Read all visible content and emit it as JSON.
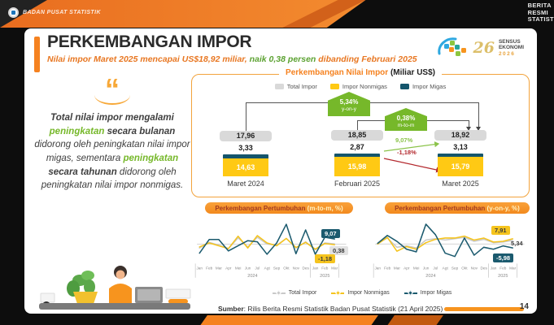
{
  "brand": {
    "org_name": "BADAN PUSAT STATISTIK",
    "corner_lines": [
      "BERITA",
      "RESMI",
      "STATISTIK"
    ],
    "sensus": {
      "word1": "SENSUS",
      "word2": "EKONOMI",
      "year": "2026",
      "numeral": "26"
    }
  },
  "header": {
    "title": "PERKEMBANGAN IMPOR",
    "subtitle_pre": "Nilai impor Maret 2025 mencapai US$18,92 miliar, ",
    "subtitle_highlight": "naik 0,38 persen",
    "subtitle_post": " dibanding Februari 2025"
  },
  "quote": {
    "mark": "“",
    "seg1": "Total nilai impor mengalami ",
    "seg2": "peningkatan",
    "seg3": " secara bulanan",
    "seg4": " didorong oleh peningkatan nilai impor migas, sementara ",
    "seg5": "peningkatan",
    "seg6": " secara tahunan",
    "seg7": " didorong oleh peningkatan nilai impor nonmigas."
  },
  "main_panel": {
    "title_main": "Perkembangan Nilai Impor ",
    "title_unit": "(Miliar US$)",
    "legend": [
      {
        "label": "Total Impor"
      },
      {
        "label": "Impor Nonmigas"
      },
      {
        "label": "Impor Migas"
      }
    ],
    "badge_yoy": {
      "pct": "5,34%",
      "sub": "y-on-y"
    },
    "badge_mtm": {
      "pct": "0,38%",
      "sub": "m-to-m"
    },
    "arrow_migas": "9,07%",
    "arrow_nonmigas": "-1,18%",
    "columns": [
      {
        "label": "Maret 2024",
        "total": "17,96",
        "migas": "3,33",
        "nonmigas": "14,63"
      },
      {
        "label": "Februari 2025",
        "total": "18,85",
        "migas": "2,87",
        "nonmigas": "15,98"
      },
      {
        "label": "Maret 2025",
        "total": "18,92",
        "migas": "3,13",
        "nonmigas": "15,79"
      }
    ]
  },
  "mini_charts": [
    {
      "title_main": "Perkembangan Pertumbuhan ",
      "title_unit": "(m-to-m, %)",
      "badges": [
        {
          "text": "9,07"
        },
        {
          "text": "0,38"
        },
        {
          "text": "-1,18"
        }
      ]
    },
    {
      "title_main": "Perkembangan Pertumbuhan ",
      "title_unit": "(y-on-y, %)",
      "badges": [
        {
          "text": "7,91"
        },
        {
          "text": "5,34"
        },
        {
          "text": "-5,98"
        }
      ]
    }
  ],
  "bottom_legend": [
    {
      "label": "Total Impor"
    },
    {
      "label": "Impor Nonmigas"
    },
    {
      "label": "Impor Migas"
    }
  ],
  "footer": {
    "source_bold": "Sumber",
    "source_rest": ": Rilis Berita Resmi Statistik Badan Pusat Statistik (21 April 2025)",
    "page": "14"
  },
  "colors": {
    "orange": "#F58220",
    "yellow": "#FFC914",
    "navy": "#14556C",
    "green": "#76B82A",
    "red": "#B3282D",
    "gray_pill": "#D9D9D9"
  },
  "chart_data": [
    {
      "type": "bar",
      "title": "Perkembangan Nilai Impor (Miliar US$)",
      "categories": [
        "Maret 2024",
        "Februari 2025",
        "Maret 2025"
      ],
      "series": [
        {
          "name": "Total Impor",
          "values": [
            17.96,
            18.85,
            18.92
          ]
        },
        {
          "name": "Impor Nonmigas",
          "values": [
            14.63,
            15.98,
            15.79
          ]
        },
        {
          "name": "Impor Migas",
          "values": [
            3.33,
            2.87,
            3.13
          ]
        }
      ],
      "annotations": {
        "yoy_growth_pct": 5.34,
        "mtm_growth_pct": 0.38,
        "migas_mtm_pct": 9.07,
        "nonmigas_mtm_pct": -1.18
      },
      "legend_position": "top",
      "grid": false
    },
    {
      "type": "line",
      "title": "Perkembangan Pertumbuhan (m-to-m, %)",
      "x": [
        "Jan",
        "Feb",
        "Mar",
        "Apr",
        "Mei",
        "Jun",
        "Jul",
        "Agt",
        "Sep",
        "Okt",
        "Nov",
        "Des",
        "Jan",
        "Feb",
        "Mar"
      ],
      "year_groups": [
        {
          "label": "2024",
          "from": 0,
          "to": 11
        },
        {
          "label": "2025",
          "from": 12,
          "to": 14
        }
      ],
      "ylim": [
        -30,
        42
      ],
      "grid": false,
      "series": [
        {
          "name": "Total Impor",
          "color": "#C9C9C9",
          "values": [
            -7,
            3,
            -2,
            -8,
            11,
            -5,
            12,
            0,
            -2,
            10,
            -7,
            4,
            -10,
            2,
            0.38
          ]
        },
        {
          "name": "Impor Nonmigas",
          "color": "#F5C41E",
          "values": [
            -5,
            2,
            -3,
            -8,
            14,
            -7,
            15,
            2,
            -3,
            10,
            -6,
            3,
            -9,
            1,
            -1.18
          ]
        },
        {
          "name": "Impor Migas",
          "color": "#1B5A6E",
          "values": [
            -16,
            8,
            8,
            -12,
            -3,
            6,
            4,
            -18,
            2,
            35,
            -17,
            25,
            -18,
            12,
            9.07
          ]
        }
      ]
    },
    {
      "type": "line",
      "title": "Perkembangan Pertumbuhan (y-on-y, %)",
      "x": [
        "Jan",
        "Feb",
        "Mar",
        "Apr",
        "Mei",
        "Jun",
        "Jul",
        "Agt",
        "Sep",
        "Okt",
        "Nov",
        "Des",
        "Jan",
        "Feb",
        "Mar"
      ],
      "year_groups": [
        {
          "label": "2024",
          "from": 0,
          "to": 11
        },
        {
          "label": "2025",
          "from": 12,
          "to": 14
        }
      ],
      "ylim": [
        -26,
        36
      ],
      "grid": false,
      "series": [
        {
          "name": "Total Impor",
          "color": "#C9C9C9",
          "values": [
            1,
            9,
            -5,
            -3,
            -6,
            6,
            8,
            6,
            8,
            10,
            4,
            7,
            2,
            3,
            5.34
          ]
        },
        {
          "name": "Impor Nonmigas",
          "color": "#F5C41E",
          "values": [
            0,
            10,
            -11,
            -4,
            -8,
            2,
            7,
            9,
            9,
            12,
            6,
            9,
            3,
            4,
            7.91
          ]
        },
        {
          "name": "Impor Migas",
          "color": "#1B5A6E",
          "values": [
            1,
            13,
            4,
            -8,
            -12,
            30,
            14,
            -14,
            -19,
            9,
            -17,
            -5,
            -8,
            -3,
            -5.98
          ]
        }
      ]
    }
  ]
}
